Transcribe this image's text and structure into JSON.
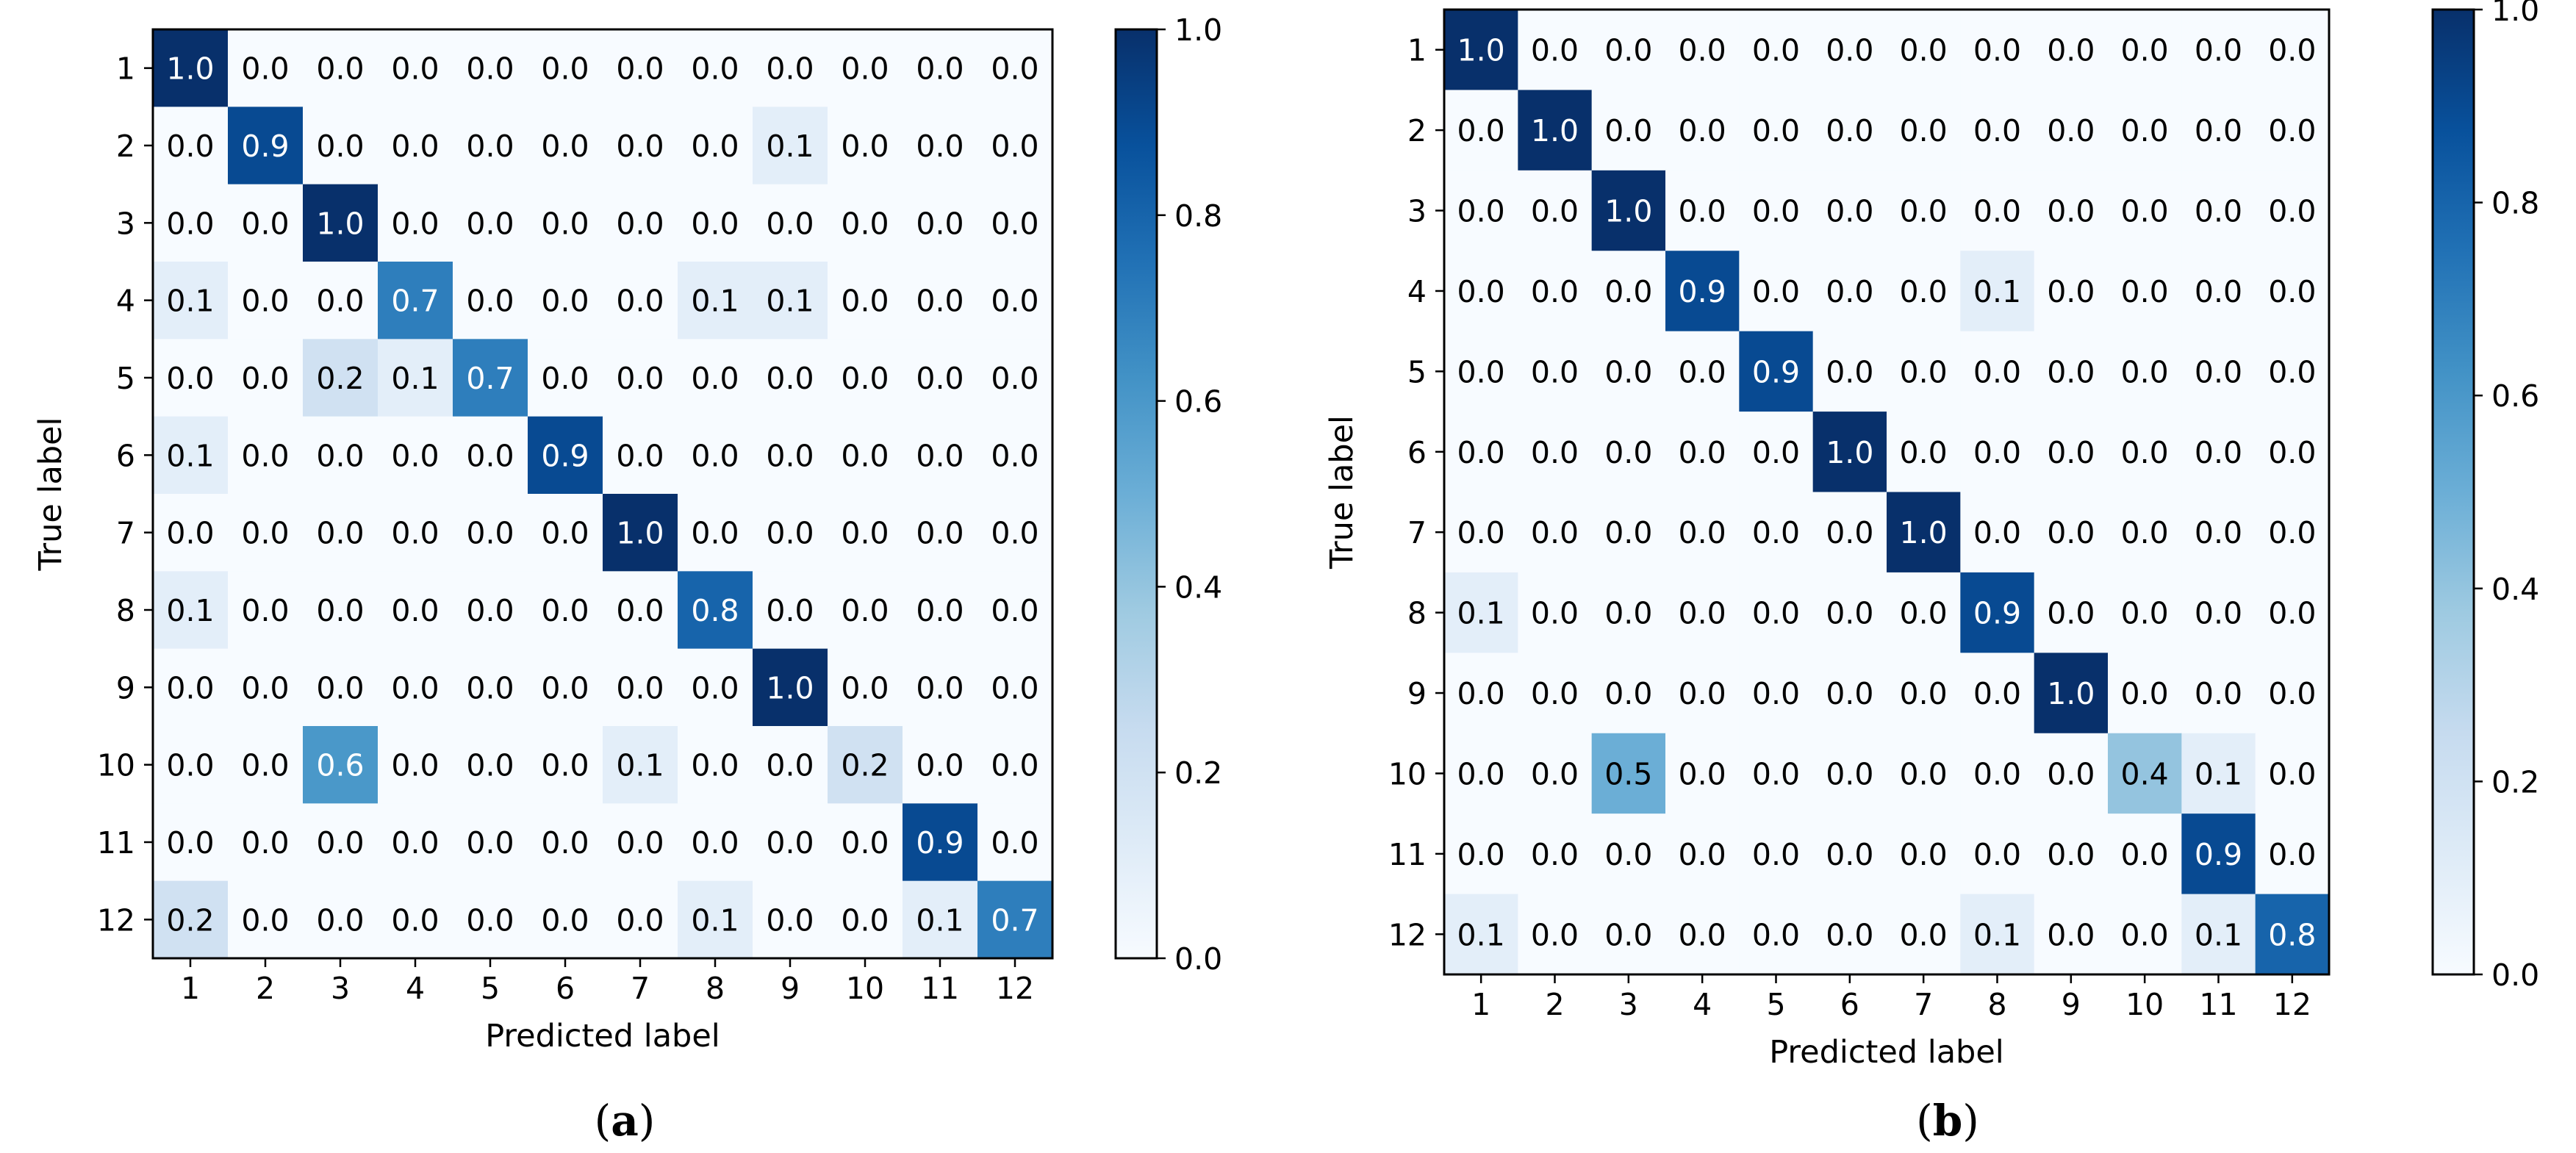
{
  "colors": {
    "cmap": [
      "#f7fbff",
      "#deebf7",
      "#c6dbef",
      "#9ecae1",
      "#6baed6",
      "#4292c6",
      "#2171b5",
      "#08519c",
      "#08306b"
    ],
    "text_dark": "#000000",
    "text_light": "#ffffff",
    "axis": "#000000"
  },
  "chart_data": [
    {
      "type": "heatmap",
      "caption": "(a)",
      "caption_letter": "a",
      "xlabel": "Predicted label",
      "ylabel": "True label",
      "x_tick_labels": [
        "1",
        "2",
        "3",
        "4",
        "5",
        "6",
        "7",
        "8",
        "9",
        "10",
        "11",
        "12"
      ],
      "y_tick_labels": [
        "1",
        "2",
        "3",
        "4",
        "5",
        "6",
        "7",
        "8",
        "9",
        "10",
        "11",
        "12"
      ],
      "colorbar": {
        "min": 0.0,
        "max": 1.0,
        "tick_labels": [
          "0.0",
          "0.2",
          "0.4",
          "0.6",
          "0.8",
          "1.0"
        ]
      },
      "values": [
        [
          1.0,
          0.0,
          0.0,
          0.0,
          0.0,
          0.0,
          0.0,
          0.0,
          0.0,
          0.0,
          0.0,
          0.0
        ],
        [
          0.0,
          0.9,
          0.0,
          0.0,
          0.0,
          0.0,
          0.0,
          0.0,
          0.1,
          0.0,
          0.0,
          0.0
        ],
        [
          0.0,
          0.0,
          1.0,
          0.0,
          0.0,
          0.0,
          0.0,
          0.0,
          0.0,
          0.0,
          0.0,
          0.0
        ],
        [
          0.1,
          0.0,
          0.0,
          0.7,
          0.0,
          0.0,
          0.0,
          0.1,
          0.1,
          0.0,
          0.0,
          0.0
        ],
        [
          0.0,
          0.0,
          0.2,
          0.1,
          0.7,
          0.0,
          0.0,
          0.0,
          0.0,
          0.0,
          0.0,
          0.0
        ],
        [
          0.1,
          0.0,
          0.0,
          0.0,
          0.0,
          0.9,
          0.0,
          0.0,
          0.0,
          0.0,
          0.0,
          0.0
        ],
        [
          0.0,
          0.0,
          0.0,
          0.0,
          0.0,
          0.0,
          1.0,
          0.0,
          0.0,
          0.0,
          0.0,
          0.0
        ],
        [
          0.1,
          0.0,
          0.0,
          0.0,
          0.0,
          0.0,
          0.0,
          0.8,
          0.0,
          0.0,
          0.0,
          0.0
        ],
        [
          0.0,
          0.0,
          0.0,
          0.0,
          0.0,
          0.0,
          0.0,
          0.0,
          1.0,
          0.0,
          0.0,
          0.0
        ],
        [
          0.0,
          0.0,
          0.6,
          0.0,
          0.0,
          0.0,
          0.1,
          0.0,
          0.0,
          0.2,
          0.0,
          0.0
        ],
        [
          0.0,
          0.0,
          0.0,
          0.0,
          0.0,
          0.0,
          0.0,
          0.0,
          0.0,
          0.0,
          0.9,
          0.0
        ],
        [
          0.2,
          0.0,
          0.0,
          0.0,
          0.0,
          0.0,
          0.0,
          0.1,
          0.0,
          0.0,
          0.1,
          0.7
        ]
      ]
    },
    {
      "type": "heatmap",
      "caption": "(b)",
      "caption_letter": "b",
      "xlabel": "Predicted label",
      "ylabel": "True label",
      "x_tick_labels": [
        "1",
        "2",
        "3",
        "4",
        "5",
        "6",
        "7",
        "8",
        "9",
        "10",
        "11",
        "12"
      ],
      "y_tick_labels": [
        "1",
        "2",
        "3",
        "4",
        "5",
        "6",
        "7",
        "8",
        "9",
        "10",
        "11",
        "12"
      ],
      "colorbar": {
        "min": 0.0,
        "max": 1.0,
        "tick_labels": [
          "0.0",
          "0.2",
          "0.4",
          "0.6",
          "0.8",
          "1.0"
        ]
      },
      "values": [
        [
          1.0,
          0.0,
          0.0,
          0.0,
          0.0,
          0.0,
          0.0,
          0.0,
          0.0,
          0.0,
          0.0,
          0.0
        ],
        [
          0.0,
          1.0,
          0.0,
          0.0,
          0.0,
          0.0,
          0.0,
          0.0,
          0.0,
          0.0,
          0.0,
          0.0
        ],
        [
          0.0,
          0.0,
          1.0,
          0.0,
          0.0,
          0.0,
          0.0,
          0.0,
          0.0,
          0.0,
          0.0,
          0.0
        ],
        [
          0.0,
          0.0,
          0.0,
          0.9,
          0.0,
          0.0,
          0.0,
          0.1,
          0.0,
          0.0,
          0.0,
          0.0
        ],
        [
          0.0,
          0.0,
          0.0,
          0.0,
          0.9,
          0.0,
          0.0,
          0.0,
          0.0,
          0.0,
          0.0,
          0.0
        ],
        [
          0.0,
          0.0,
          0.0,
          0.0,
          0.0,
          1.0,
          0.0,
          0.0,
          0.0,
          0.0,
          0.0,
          0.0
        ],
        [
          0.0,
          0.0,
          0.0,
          0.0,
          0.0,
          0.0,
          1.0,
          0.0,
          0.0,
          0.0,
          0.0,
          0.0
        ],
        [
          0.1,
          0.0,
          0.0,
          0.0,
          0.0,
          0.0,
          0.0,
          0.9,
          0.0,
          0.0,
          0.0,
          0.0
        ],
        [
          0.0,
          0.0,
          0.0,
          0.0,
          0.0,
          0.0,
          0.0,
          0.0,
          1.0,
          0.0,
          0.0,
          0.0
        ],
        [
          0.0,
          0.0,
          0.5,
          0.0,
          0.0,
          0.0,
          0.0,
          0.0,
          0.0,
          0.4,
          0.1,
          0.0
        ],
        [
          0.0,
          0.0,
          0.0,
          0.0,
          0.0,
          0.0,
          0.0,
          0.0,
          0.0,
          0.0,
          0.9,
          0.0
        ],
        [
          0.1,
          0.0,
          0.0,
          0.0,
          0.0,
          0.0,
          0.0,
          0.1,
          0.0,
          0.0,
          0.1,
          0.8
        ]
      ]
    }
  ]
}
